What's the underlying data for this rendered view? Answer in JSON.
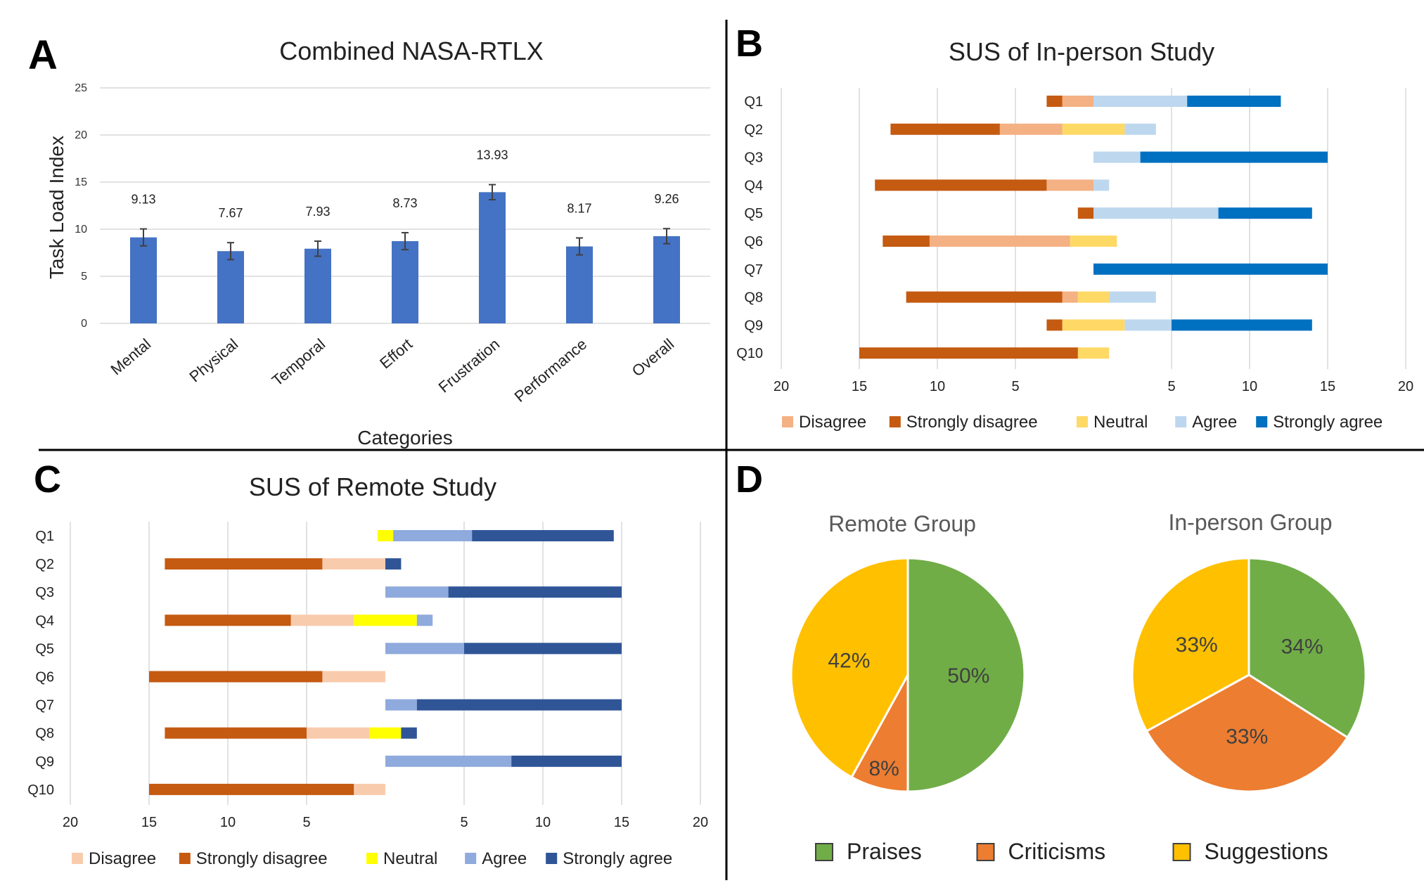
{
  "panel_labels": [
    "A",
    "B",
    "C",
    "D"
  ],
  "colors": {
    "bar": "#4472c4",
    "grid": "#d9d9d9",
    "axis_text": "#333333",
    "disagree_b": "#f4b183",
    "strongly_disagree": "#c55a11",
    "neutral_b": "#ffd966",
    "agree_b": "#bdd7ee",
    "strongly_agree_b": "#0070c0",
    "disagree_c": "#f8cbad",
    "neutral_c": "#ffff00",
    "agree_c": "#8faadc",
    "strongly_agree_c": "#2f5597",
    "praises": "#70ad47",
    "criticisms": "#ed7d31",
    "suggestions": "#ffc000"
  },
  "chart_data": [
    {
      "panel": "A",
      "type": "bar",
      "title": "Combined NASA-RTLX",
      "xlabel": "Categories",
      "ylabel": "Task Load Index",
      "ylim": [
        0,
        25
      ],
      "yticks": [
        0,
        5,
        10,
        15,
        20,
        25
      ],
      "grid": true,
      "categories": [
        "Mental",
        "Physical",
        "Temporal",
        "Effort",
        "Frustration",
        "Performance",
        "Overall"
      ],
      "values": [
        9.13,
        7.67,
        7.93,
        8.73,
        13.93,
        8.17,
        9.26
      ],
      "value_labels": [
        "9.13",
        "7.67",
        "7.93",
        "8.73",
        "13.93",
        "8.17",
        "9.26"
      ],
      "error": [
        0.9,
        0.9,
        0.8,
        0.9,
        0.8,
        0.9,
        0.8
      ]
    },
    {
      "panel": "B",
      "type": "bar",
      "orientation": "horizontal-diverging",
      "title": "SUS of In-person Study",
      "xlim": [
        -20,
        20
      ],
      "xtick_values": [
        -20,
        -15,
        -10,
        -5,
        5,
        10,
        15,
        20
      ],
      "xtick_labels": [
        "20",
        "15",
        "10",
        "5",
        "5",
        "10",
        "15",
        "20"
      ],
      "grid": true,
      "legend_position": "bottom",
      "categories": [
        "Q1",
        "Q2",
        "Q3",
        "Q4",
        "Q5",
        "Q6",
        "Q7",
        "Q8",
        "Q9",
        "Q10"
      ],
      "series": [
        {
          "name": "Disagree",
          "side": "negative",
          "color_key": "disagree_b",
          "values": [
            2,
            4,
            0,
            3,
            0,
            9,
            0,
            1,
            0,
            0
          ]
        },
        {
          "name": "Strongly disagree",
          "side": "negative",
          "color_key": "strongly_disagree",
          "values": [
            1,
            7,
            0,
            11,
            1,
            3,
            0,
            10,
            1,
            14
          ]
        },
        {
          "name": "Neutral",
          "side": "split",
          "color_key": "neutral_b",
          "values": [
            0,
            4,
            0,
            0,
            0,
            3,
            0,
            2,
            4,
            2
          ]
        },
        {
          "name": "Agree",
          "side": "positive",
          "color_key": "agree_b",
          "values": [
            6,
            2,
            3,
            1,
            8,
            0,
            0,
            3,
            3,
            0
          ]
        },
        {
          "name": "Strongly agree",
          "side": "positive",
          "color_key": "strongly_agree_b",
          "values": [
            6,
            0,
            12,
            0,
            6,
            0,
            15,
            0,
            9,
            0
          ]
        }
      ]
    },
    {
      "panel": "C",
      "type": "bar",
      "orientation": "horizontal-diverging",
      "title": "SUS of Remote Study",
      "xlim": [
        -20,
        20
      ],
      "xtick_values": [
        -20,
        -15,
        -10,
        -5,
        5,
        10,
        15,
        20
      ],
      "xtick_labels": [
        "20",
        "15",
        "10",
        "5",
        "5",
        "10",
        "15",
        "20"
      ],
      "grid": true,
      "legend_position": "bottom",
      "categories": [
        "Q1",
        "Q2",
        "Q3",
        "Q4",
        "Q5",
        "Q6",
        "Q7",
        "Q8",
        "Q9",
        "Q10"
      ],
      "series": [
        {
          "name": "Disagree",
          "side": "negative",
          "color_key": "disagree_c",
          "values": [
            0,
            4,
            0,
            4,
            0,
            4,
            0,
            4,
            0,
            2
          ]
        },
        {
          "name": "Strongly disagree",
          "side": "negative",
          "color_key": "strongly_disagree",
          "values": [
            0,
            10,
            0,
            8,
            0,
            11,
            0,
            9,
            0,
            13
          ]
        },
        {
          "name": "Neutral",
          "side": "split",
          "color_key": "neutral_c",
          "values": [
            1,
            0,
            0,
            4,
            0,
            0,
            0,
            2,
            0,
            0
          ]
        },
        {
          "name": "Agree",
          "side": "positive",
          "color_key": "agree_c",
          "values": [
            5,
            0,
            4,
            1,
            5,
            0,
            2,
            0,
            8,
            0
          ]
        },
        {
          "name": "Strongly agree",
          "side": "positive",
          "color_key": "strongly_agree_c",
          "values": [
            9,
            1,
            11,
            0,
            10,
            0,
            13,
            1,
            7,
            0
          ]
        }
      ]
    },
    {
      "panel": "D",
      "type": "pie",
      "title": "Remote Group",
      "categories": [
        "Praises",
        "Criticisms",
        "Suggestions"
      ],
      "values": [
        50,
        8,
        42
      ],
      "value_labels": [
        "50%",
        "8%",
        "42%"
      ]
    },
    {
      "panel": "D",
      "type": "pie",
      "title": "In-person Group",
      "categories": [
        "Praises",
        "Criticisms",
        "Suggestions"
      ],
      "values": [
        34,
        33,
        33
      ],
      "value_labels": [
        "34%",
        "33%",
        "33%"
      ]
    }
  ],
  "pie_legend": [
    {
      "label": "Praises",
      "color_key": "praises"
    },
    {
      "label": "Criticisms",
      "color_key": "criticisms"
    },
    {
      "label": "Suggestions",
      "color_key": "suggestions"
    }
  ]
}
